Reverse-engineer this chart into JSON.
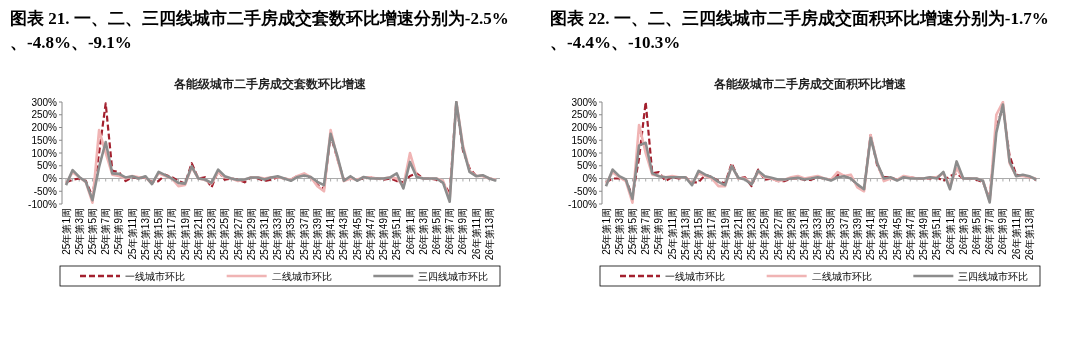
{
  "chart_data": [
    {
      "type": "line",
      "title": "图表 21. 一、二、三四线城市二手房成交套数环比增速分别为-2.5%、-4.8%、-9.1%",
      "subtitle": "各能级城市二手房成交套数环比增速",
      "categories": [
        "25年第1周",
        null,
        "25年第3周",
        null,
        "25年第5周",
        null,
        "25年第7周",
        null,
        "25年第9周",
        null,
        "25年第11周",
        null,
        "25年第13周",
        null,
        "25年第15周",
        null,
        "25年第17周",
        null,
        "25年第19周",
        null,
        "25年第21周",
        null,
        "25年第23周",
        null,
        "25年第25周",
        null,
        "25年第27周",
        null,
        "25年第29周",
        null,
        "25年第31周",
        null,
        "25年第33周",
        null,
        "25年第35周",
        null,
        "25年第37周",
        null,
        "25年第39周",
        null,
        "25年第41周",
        null,
        "25年第43周",
        null,
        "25年第45周",
        null,
        "25年第47周",
        null,
        "25年第49周",
        null,
        "25年第51周",
        null,
        "26年第1周",
        null,
        "26年第3周",
        null,
        "26年第5周",
        null,
        "26年第7周",
        null,
        "26年第9周",
        null,
        "26年第11周",
        null,
        "26年第13周",
        null
      ],
      "series": [
        {
          "name": "一线城市环比",
          "color": "#a3202e",
          "line_style": "dashed",
          "values": [
            -15,
            -5,
            0,
            -10,
            -70,
            100,
            295,
            30,
            25,
            -10,
            5,
            0,
            5,
            -15,
            -10,
            15,
            5,
            -10,
            -20,
            60,
            0,
            5,
            -35,
            30,
            -5,
            0,
            -5,
            -15,
            5,
            0,
            -10,
            -5,
            5,
            0,
            -5,
            10,
            10,
            5,
            -25,
            -40,
            170,
            80,
            -5,
            5,
            -5,
            0,
            5,
            0,
            -5,
            0,
            -10,
            -15,
            10,
            20,
            0,
            0,
            -5,
            -15,
            -60,
            300,
            110,
            40,
            10,
            10,
            0,
            -5
          ]
        },
        {
          "name": "二线城市环比",
          "color": "#f0b4b4",
          "line_style": "solid",
          "values": [
            -20,
            25,
            5,
            -15,
            -95,
            190,
            100,
            15,
            10,
            0,
            10,
            5,
            5,
            -20,
            20,
            10,
            0,
            -30,
            -25,
            45,
            0,
            -5,
            -20,
            25,
            5,
            0,
            -10,
            -5,
            5,
            5,
            0,
            5,
            5,
            0,
            -5,
            10,
            20,
            5,
            -30,
            -50,
            190,
            80,
            -10,
            0,
            -5,
            5,
            5,
            0,
            0,
            5,
            0,
            -30,
            100,
            10,
            0,
            0,
            0,
            -10,
            -80,
            300,
            130,
            30,
            10,
            10,
            0,
            -5
          ]
        },
        {
          "name": "三四线城市环比",
          "color": "#8c8c8c",
          "line_style": "solid",
          "values": [
            -26,
            33,
            6,
            -13,
            -85,
            45,
            143,
            20,
            18,
            4,
            9,
            0,
            9,
            -22,
            26,
            13,
            0,
            -17,
            -20,
            48,
            0,
            -4,
            -17,
            35,
            9,
            0,
            -6,
            -4,
            4,
            4,
            -4,
            4,
            9,
            0,
            -9,
            6,
            12,
            6,
            -13,
            -26,
            175,
            90,
            -9,
            9,
            -9,
            6,
            0,
            0,
            0,
            4,
            20,
            -39,
            65,
            6,
            0,
            0,
            0,
            -17,
            -91,
            300,
            120,
            26,
            9,
            13,
            0,
            -9
          ]
        }
      ],
      "ylim": [
        -100,
        300
      ],
      "yticks": [
        {
          "value": -100,
          "label": "-100%"
        },
        {
          "value": -50,
          "label": "-50%"
        },
        {
          "value": 0,
          "label": "0%"
        },
        {
          "value": 50,
          "label": "50%"
        },
        {
          "value": 100,
          "label": "100%"
        },
        {
          "value": 150,
          "label": "150%"
        },
        {
          "value": 200,
          "label": "200%"
        },
        {
          "value": 250,
          "label": "250%"
        },
        {
          "value": 300,
          "label": "300%"
        }
      ],
      "legend": "bottom"
    },
    {
      "type": "line",
      "title": "图表 22. 一、二、三四线城市二手房成交面积环比增速分别为-1.7%、-4.4%、-10.3%",
      "subtitle": "各能级城市二手房成交面积环比增速",
      "categories": [
        "25年第1周",
        null,
        "25年第3周",
        null,
        "25年第5周",
        null,
        "25年第7周",
        null,
        "25年第9周",
        null,
        "25年第11周",
        null,
        "25年第13周",
        null,
        "25年第15周",
        null,
        "25年第17周",
        null,
        "25年第19周",
        null,
        "25年第21周",
        null,
        "25年第23周",
        null,
        "25年第25周",
        null,
        "25年第27周",
        null,
        "25年第29周",
        null,
        "25年第31周",
        null,
        "25年第33周",
        null,
        "25年第35周",
        null,
        "25年第37周",
        null,
        "25年第39周",
        null,
        "25年第41周",
        null,
        "25年第43周",
        null,
        "25年第45周",
        null,
        "25年第47周",
        null,
        "25年第49周",
        null,
        "25年第51周",
        null,
        "26年第1周",
        null,
        "26年第3周",
        null,
        "26年第5周",
        null,
        "26年第7周",
        null,
        "26年第9周",
        null,
        "26年第11周",
        null,
        "26年第13周",
        null
      ],
      "series": [
        {
          "name": "一线城市环比",
          "color": "#a3202e",
          "line_style": "dashed",
          "values": [
            -15,
            0,
            0,
            -5,
            -70,
            80,
            300,
            20,
            25,
            -10,
            5,
            0,
            5,
            -15,
            -15,
            15,
            5,
            -10,
            -20,
            60,
            0,
            5,
            -30,
            35,
            -5,
            0,
            -10,
            -10,
            0,
            0,
            -5,
            -5,
            5,
            0,
            -5,
            15,
            10,
            5,
            -30,
            -45,
            170,
            50,
            5,
            5,
            -5,
            5,
            5,
            0,
            0,
            0,
            5,
            -10,
            10,
            20,
            0,
            0,
            -5,
            -15,
            -80,
            200,
            280,
            90,
            15,
            10,
            5,
            -5
          ]
        },
        {
          "name": "二线城市环比",
          "color": "#f0b4b4",
          "line_style": "solid",
          "values": [
            -20,
            25,
            5,
            -10,
            -95,
            210,
            100,
            15,
            10,
            5,
            10,
            5,
            5,
            -20,
            20,
            10,
            0,
            -30,
            -30,
            50,
            0,
            0,
            -20,
            25,
            5,
            0,
            -10,
            -5,
            5,
            10,
            0,
            5,
            10,
            0,
            -5,
            25,
            10,
            15,
            -35,
            -50,
            170,
            60,
            -10,
            0,
            -5,
            10,
            5,
            0,
            0,
            5,
            5,
            20,
            -30,
            40,
            0,
            0,
            0,
            -10,
            -90,
            250,
            300,
            60,
            10,
            10,
            5,
            0
          ]
        },
        {
          "name": "三四线城市环比",
          "color": "#8c8c8c",
          "line_style": "solid",
          "values": [
            -30,
            35,
            9,
            -4,
            -80,
            130,
            140,
            20,
            9,
            5,
            5,
            5,
            5,
            -26,
            30,
            15,
            5,
            -13,
            -26,
            48,
            3,
            -4,
            -23,
            30,
            9,
            3,
            -4,
            -4,
            0,
            3,
            -4,
            0,
            5,
            0,
            -8,
            5,
            9,
            0,
            -23,
            -42,
            160,
            60,
            0,
            5,
            -8,
            5,
            0,
            0,
            0,
            5,
            0,
            26,
            -42,
            67,
            0,
            0,
            0,
            -10,
            -94,
            180,
            290,
            67,
            9,
            15,
            9,
            -4
          ]
        }
      ],
      "ylim": [
        -100,
        300
      ],
      "yticks": [
        {
          "value": -100,
          "label": "-100%"
        },
        {
          "value": -50,
          "label": "-50%"
        },
        {
          "value": 0,
          "label": "0%"
        },
        {
          "value": 50,
          "label": "50%"
        },
        {
          "value": 100,
          "label": "100%"
        },
        {
          "value": 150,
          "label": "150%"
        },
        {
          "value": 200,
          "label": "200%"
        },
        {
          "value": 250,
          "label": "250%"
        },
        {
          "value": 300,
          "label": "300%"
        }
      ],
      "legend": "bottom"
    }
  ]
}
